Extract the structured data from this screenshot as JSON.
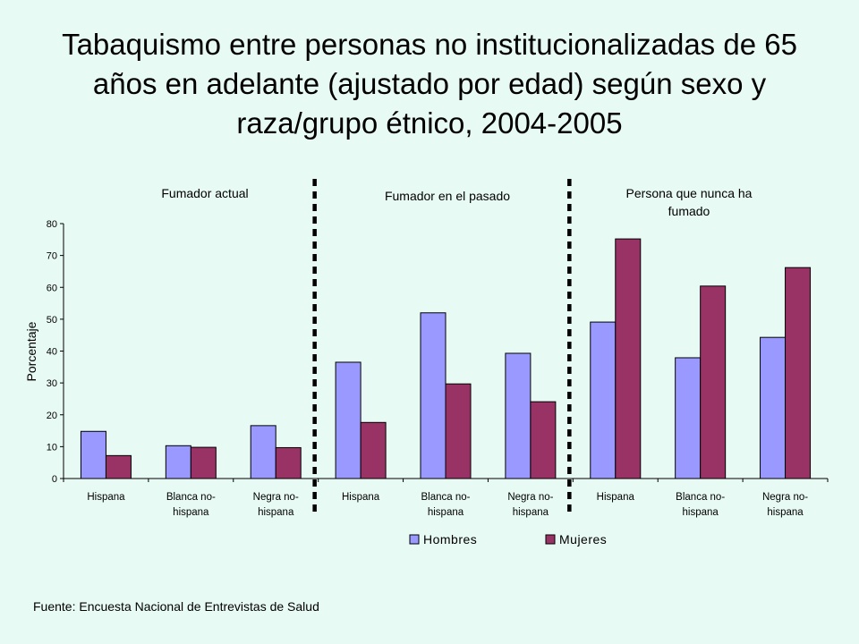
{
  "title": "Tabaquismo entre personas no institucionalizadas de 65 años en adelante (ajustado por edad) según sexo y raza/grupo étnico, 2004-2005",
  "source": "Fuente: Encuesta Nacional de Entrevistas de Salud",
  "colors": {
    "hombres": "#9999ff",
    "mujeres": "#993366",
    "background": "#e8faf4"
  },
  "chart_data": {
    "type": "bar",
    "ylabel": "Porcentaje",
    "ylim": [
      0,
      80
    ],
    "yticks": [
      0,
      10,
      20,
      30,
      40,
      50,
      60,
      70,
      80
    ],
    "groups": [
      {
        "label": "Fumador actual",
        "categories": [
          "Hispana",
          "Blanca no-hispana",
          "Negra no-hispana"
        ]
      },
      {
        "label": "Fumador en el pasado",
        "categories": [
          "Hispana",
          "Blanca no-hispana",
          "Negra no-hispana"
        ]
      },
      {
        "label": "Persona que nunca ha fumado",
        "categories": [
          "Hispana",
          "Blanca no-hispana",
          "Negra no-hispana"
        ]
      }
    ],
    "categories": [
      [
        "Hispana"
      ],
      [
        "Blanca no-",
        "hispana"
      ],
      [
        "Negra no-",
        "hispana"
      ],
      [
        "Hispana"
      ],
      [
        "Blanca no-",
        "hispana"
      ],
      [
        "Negra no-",
        "hispana"
      ],
      [
        "Hispana"
      ],
      [
        "Blanca no-",
        "hispana"
      ],
      [
        "Negra no-",
        "hispana"
      ]
    ],
    "series": [
      {
        "name": "Hombres",
        "values": [
          14.8,
          10.3,
          16.6,
          36.5,
          52.0,
          39.3,
          49.1,
          37.9,
          44.3
        ]
      },
      {
        "name": "Mujeres",
        "values": [
          7.2,
          9.8,
          9.7,
          17.6,
          29.7,
          24.1,
          75.2,
          60.4,
          66.2
        ]
      }
    ],
    "legend_position": "bottom"
  }
}
